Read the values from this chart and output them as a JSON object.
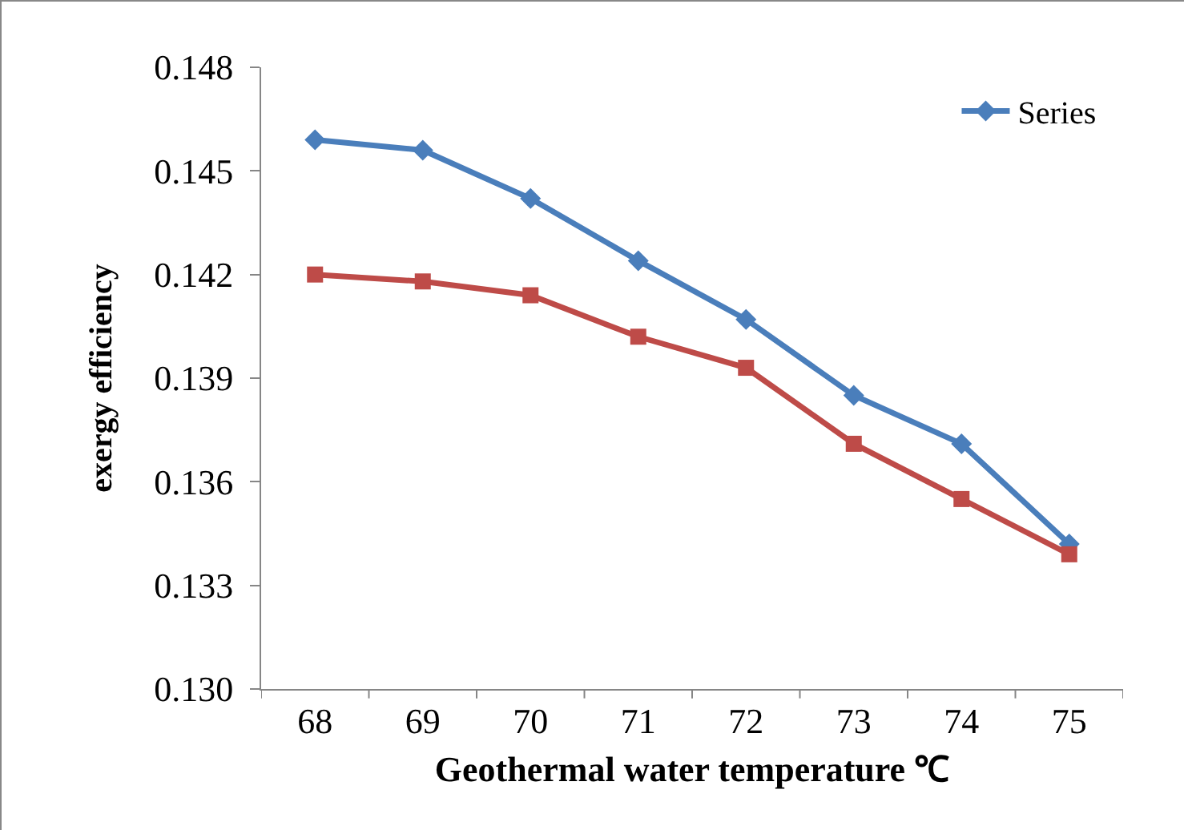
{
  "chart_data": {
    "type": "line",
    "xlabel": "Geothermal water temperature ℃",
    "ylabel": "exergy efficiency",
    "categories": [
      "68",
      "69",
      "70",
      "71",
      "72",
      "73",
      "74",
      "75"
    ],
    "series": [
      {
        "name": "Series",
        "color": "#4a7ebb",
        "marker": "diamond",
        "values": [
          0.1459,
          0.1456,
          0.1442,
          0.1424,
          0.1407,
          0.1385,
          0.1371,
          0.1342
        ]
      },
      {
        "color": "#be4b48",
        "marker": "square",
        "values": [
          0.142,
          0.1418,
          0.1414,
          0.1402,
          0.1393,
          0.1371,
          0.1355,
          0.1339
        ]
      }
    ],
    "ylim": [
      0.13,
      0.148
    ],
    "yticks": [
      {
        "value": 0.13,
        "label": "0.130"
      },
      {
        "value": 0.133,
        "label": "0.133"
      },
      {
        "value": 0.136,
        "label": "0.136"
      },
      {
        "value": 0.139,
        "label": "0.139"
      },
      {
        "value": 0.142,
        "label": "0.142"
      },
      {
        "value": 0.145,
        "label": "0.145"
      },
      {
        "value": 0.148,
        "label": "0.148"
      }
    ],
    "grid": false,
    "legend": "top right",
    "line_style": "solid"
  }
}
